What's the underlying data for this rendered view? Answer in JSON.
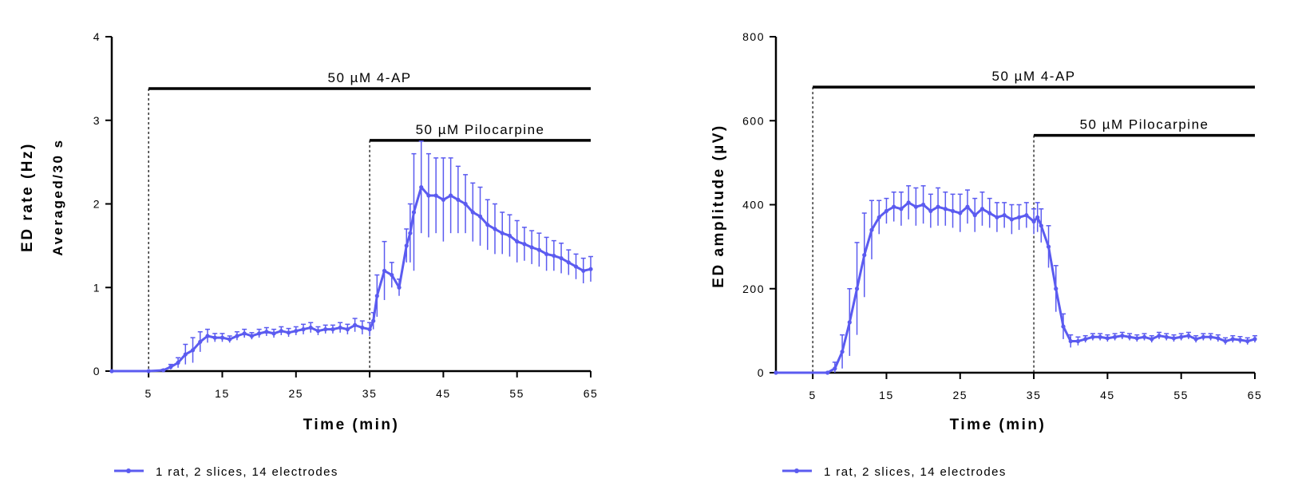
{
  "chart_data": [
    {
      "type": "line",
      "ylabel": "ED rate (Hz)",
      "ylabel2": "Averaged/30 s",
      "xlabel": "Time (min)",
      "xlim": [
        0,
        65
      ],
      "ylim": [
        0,
        4
      ],
      "xticks": [
        5,
        15,
        25,
        35,
        45,
        55,
        65
      ],
      "yticks": [
        0,
        1,
        2,
        3,
        4
      ],
      "grid": false,
      "baseline": 0,
      "annotations": [
        {
          "label": "50 µM 4-AP",
          "x_start": 5,
          "x_end": 65,
          "y": 3.38
        },
        {
          "label": "50 µM Pilocarpine",
          "x_start": 35,
          "x_end": 65,
          "y": 2.76
        }
      ],
      "legend": {
        "position": "bottom-left",
        "entries": [
          "1 rat, 2 slices, 14 electrodes"
        ]
      },
      "series": [
        {
          "name": "1 rat, 2 slices, 14 electrodes",
          "color": "#5b5bf0",
          "x": [
            0,
            5,
            7,
            8,
            9,
            10,
            11,
            12,
            13,
            14,
            15,
            16,
            17,
            18,
            19,
            20,
            21,
            22,
            23,
            24,
            25,
            26,
            27,
            28,
            29,
            30,
            31,
            32,
            33,
            34,
            35,
            35.5,
            36,
            37,
            38,
            39,
            40,
            40.5,
            41,
            42,
            43,
            44,
            45,
            46,
            47,
            48,
            49,
            50,
            51,
            52,
            53,
            54,
            55,
            56,
            57,
            58,
            59,
            60,
            61,
            62,
            63,
            64,
            65
          ],
          "y": [
            0,
            0,
            0.01,
            0.05,
            0.1,
            0.2,
            0.25,
            0.35,
            0.42,
            0.4,
            0.4,
            0.38,
            0.42,
            0.45,
            0.42,
            0.45,
            0.47,
            0.45,
            0.48,
            0.46,
            0.48,
            0.5,
            0.52,
            0.48,
            0.5,
            0.5,
            0.52,
            0.5,
            0.55,
            0.52,
            0.5,
            0.6,
            0.9,
            1.2,
            1.15,
            1.0,
            1.5,
            1.65,
            1.9,
            2.2,
            2.1,
            2.1,
            2.05,
            2.1,
            2.05,
            2.0,
            1.9,
            1.85,
            1.75,
            1.7,
            1.65,
            1.62,
            1.55,
            1.52,
            1.48,
            1.45,
            1.4,
            1.38,
            1.35,
            1.3,
            1.25,
            1.2,
            1.22
          ],
          "err": [
            0,
            0,
            0.01,
            0.03,
            0.06,
            0.12,
            0.15,
            0.12,
            0.08,
            0.05,
            0.05,
            0.04,
            0.05,
            0.05,
            0.04,
            0.05,
            0.05,
            0.05,
            0.05,
            0.05,
            0.05,
            0.06,
            0.06,
            0.05,
            0.05,
            0.05,
            0.06,
            0.06,
            0.08,
            0.08,
            0.08,
            0.1,
            0.25,
            0.35,
            0.15,
            0.1,
            0.2,
            0.35,
            0.7,
            0.55,
            0.5,
            0.45,
            0.5,
            0.45,
            0.4,
            0.35,
            0.35,
            0.35,
            0.3,
            0.3,
            0.25,
            0.25,
            0.25,
            0.2,
            0.2,
            0.2,
            0.2,
            0.18,
            0.18,
            0.15,
            0.15,
            0.15,
            0.15
          ]
        }
      ]
    },
    {
      "type": "line",
      "ylabel": "ED amplitude (µV)",
      "xlabel": "Time (min)",
      "xlim": [
        0,
        65
      ],
      "ylim": [
        0,
        800
      ],
      "xticks": [
        5,
        15,
        25,
        35,
        45,
        55,
        65
      ],
      "yticks": [
        0,
        200,
        400,
        600,
        800
      ],
      "grid": false,
      "annotations": [
        {
          "label": "50 µM 4-AP",
          "x_start": 5,
          "x_end": 65,
          "y": 680
        },
        {
          "label": "50 µM Pilocarpine",
          "x_start": 35,
          "x_end": 65,
          "y": 565
        }
      ],
      "legend": {
        "position": "bottom-left",
        "entries": [
          "1 rat, 2 slices, 14 electrodes"
        ]
      },
      "series": [
        {
          "name": "1 rat, 2 slices, 14 electrodes",
          "color": "#5b5bf0",
          "x": [
            0,
            7,
            8,
            9,
            10,
            11,
            12,
            13,
            14,
            15,
            16,
            17,
            18,
            19,
            20,
            21,
            22,
            23,
            24,
            25,
            26,
            27,
            28,
            29,
            30,
            31,
            32,
            33,
            34,
            35,
            35.5,
            36,
            37,
            38,
            39,
            40,
            41,
            42,
            43,
            44,
            45,
            46,
            47,
            48,
            49,
            50,
            51,
            52,
            53,
            54,
            55,
            56,
            57,
            58,
            59,
            60,
            61,
            62,
            63,
            64,
            65
          ],
          "y": [
            0,
            0,
            10,
            50,
            120,
            200,
            280,
            340,
            370,
            385,
            395,
            390,
            405,
            395,
            400,
            385,
            395,
            390,
            385,
            380,
            395,
            375,
            390,
            380,
            370,
            375,
            365,
            370,
            375,
            360,
            370,
            350,
            300,
            200,
            110,
            75,
            75,
            80,
            85,
            85,
            82,
            85,
            88,
            85,
            82,
            85,
            80,
            88,
            85,
            82,
            85,
            88,
            80,
            85,
            85,
            82,
            75,
            80,
            78,
            75,
            80
          ],
          "err": [
            0,
            0,
            15,
            40,
            80,
            110,
            100,
            70,
            40,
            30,
            35,
            40,
            40,
            45,
            45,
            40,
            45,
            40,
            40,
            45,
            40,
            40,
            40,
            35,
            35,
            30,
            35,
            30,
            30,
            30,
            35,
            40,
            50,
            55,
            30,
            15,
            10,
            8,
            8,
            8,
            8,
            8,
            8,
            8,
            8,
            8,
            8,
            8,
            8,
            8,
            8,
            8,
            8,
            8,
            8,
            8,
            8,
            8,
            8,
            8,
            8
          ]
        }
      ]
    }
  ]
}
